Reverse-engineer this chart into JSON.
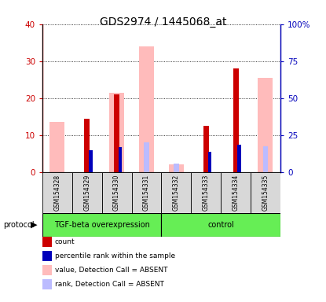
{
  "title": "GDS2974 / 1445068_at",
  "samples": [
    "GSM154328",
    "GSM154329",
    "GSM154330",
    "GSM154331",
    "GSM154332",
    "GSM154333",
    "GSM154334",
    "GSM154335"
  ],
  "value_absent": [
    13.5,
    null,
    21.5,
    34.0,
    2.2,
    null,
    null,
    25.5
  ],
  "rank_absent": [
    null,
    null,
    null,
    20.0,
    6.0,
    null,
    null,
    17.5
  ],
  "count": [
    null,
    14.5,
    21.0,
    null,
    null,
    12.5,
    28.0,
    null
  ],
  "percentile_rank": [
    null,
    15.0,
    17.0,
    null,
    null,
    13.5,
    18.5,
    null
  ],
  "ylim_left": [
    0,
    40
  ],
  "ylim_right": [
    0,
    100
  ],
  "yticks_left": [
    0,
    10,
    20,
    30,
    40
  ],
  "ytick_labels_left": [
    "0",
    "10",
    "20",
    "30",
    "40"
  ],
  "ytick_labels_right": [
    "0",
    "25",
    "50",
    "75",
    "100%"
  ],
  "color_count": "#cc0000",
  "color_percentile": "#0000bb",
  "color_value_absent": "#ffbbbb",
  "color_rank_absent": "#bbbbff",
  "legend_items": [
    {
      "label": "count",
      "color": "#cc0000"
    },
    {
      "label": "percentile rank within the sample",
      "color": "#0000bb"
    },
    {
      "label": "value, Detection Call = ABSENT",
      "color": "#ffbbbb"
    },
    {
      "label": "rank, Detection Call = ABSENT",
      "color": "#bbbbff"
    }
  ],
  "pink_bar_width": 0.5,
  "red_bar_width": 0.18,
  "blue_bar_width": 0.12,
  "lightblue_bar_width": 0.18,
  "group1_label": "TGF-beta overexpression",
  "group2_label": "control",
  "group_color": "#66ee55",
  "group1_samples": [
    0,
    3
  ],
  "group2_samples": [
    4,
    7
  ]
}
